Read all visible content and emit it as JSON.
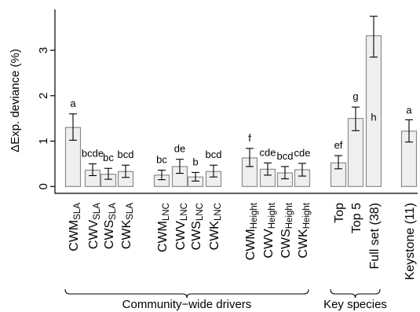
{
  "chart_data": {
    "type": "bar",
    "title": "",
    "ylabel": "ΔExp. deviance (%)",
    "xlabel": "",
    "ylim": [
      -0.15,
      3.9
    ],
    "yticks": [
      0,
      1,
      2,
      3
    ],
    "grid": false,
    "categories": [
      {
        "main": "CWM",
        "sub": "SLA"
      },
      {
        "main": "CWV",
        "sub": "SLA"
      },
      {
        "main": "CWS",
        "sub": "SLA"
      },
      {
        "main": "CWK",
        "sub": "SLA"
      },
      {
        "main": "CWM",
        "sub": "LNC"
      },
      {
        "main": "CWV",
        "sub": "LNC"
      },
      {
        "main": "CWS",
        "sub": "LNC"
      },
      {
        "main": "CWK",
        "sub": "LNC"
      },
      {
        "main": "CWM",
        "sub": "Height"
      },
      {
        "main": "CWV",
        "sub": "Height"
      },
      {
        "main": "CWS",
        "sub": "Height"
      },
      {
        "main": "CWK",
        "sub": "Height"
      },
      {
        "main": "Top",
        "sub": ""
      },
      {
        "main": "Top 5",
        "sub": ""
      },
      {
        "main": "Full set (38)",
        "sub": ""
      },
      {
        "main": "Keystone (11)",
        "sub": ""
      }
    ],
    "values": [
      1.3,
      0.36,
      0.27,
      0.33,
      0.25,
      0.44,
      0.21,
      0.33,
      0.63,
      0.38,
      0.3,
      0.37,
      0.52,
      1.5,
      3.32,
      1.22
    ],
    "err_low": [
      1.02,
      0.24,
      0.16,
      0.2,
      0.15,
      0.29,
      0.12,
      0.21,
      0.44,
      0.25,
      0.17,
      0.23,
      0.39,
      1.23,
      2.85,
      0.98
    ],
    "err_high": [
      1.6,
      0.5,
      0.4,
      0.47,
      0.36,
      0.6,
      0.31,
      0.47,
      0.84,
      0.52,
      0.44,
      0.51,
      0.68,
      1.75,
      3.75,
      1.47
    ],
    "letters": [
      "a",
      "bcde",
      "bc",
      "bcd",
      "bc",
      "de",
      "b",
      "bcd",
      "f",
      "cde",
      "bcd",
      "cde",
      "ef",
      "g",
      "h",
      "a"
    ],
    "groups": [
      {
        "label": "Community−wide drivers",
        "from": 0,
        "to": 11
      },
      {
        "label": "Key species",
        "from": 12,
        "to": 14
      }
    ]
  }
}
